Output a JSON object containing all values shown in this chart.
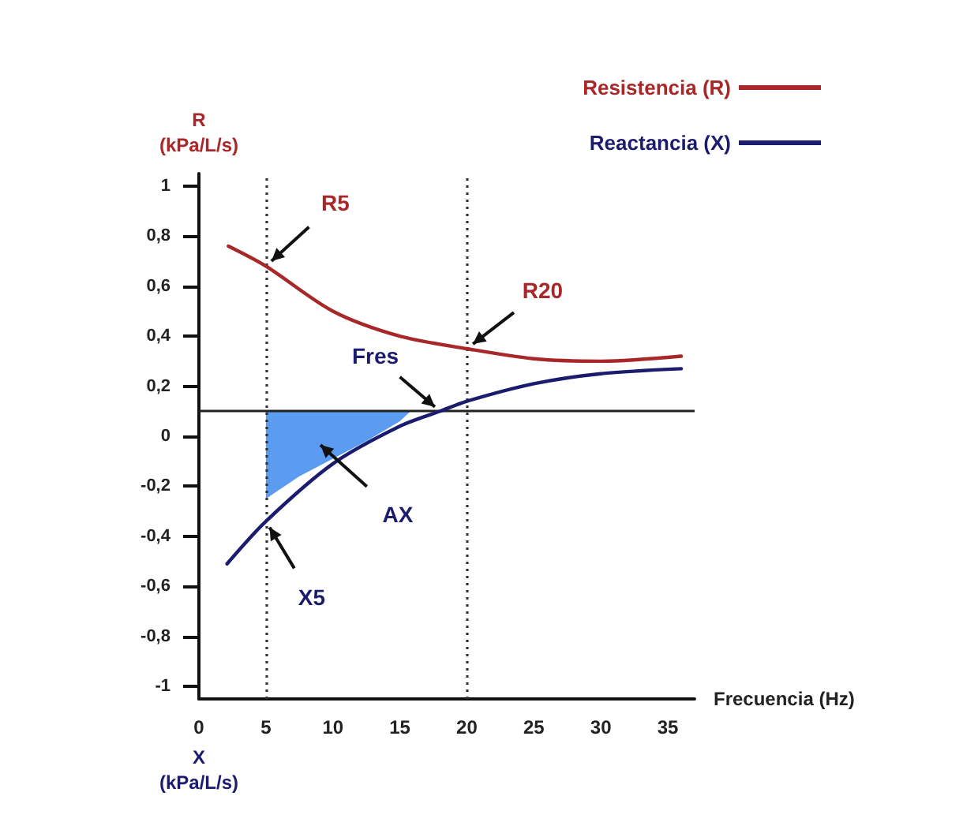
{
  "chart_data": {
    "type": "line",
    "xlabel": "Frecuencia (Hz)",
    "ylabel": "R (kPa/L/s)",
    "xlim": [
      0,
      37
    ],
    "xticks": [
      0,
      5,
      10,
      15,
      20,
      25,
      30,
      35
    ],
    "ylim": [
      -1.05,
      1.05
    ],
    "yticks": [
      {
        "value": -1,
        "label": "-1"
      },
      {
        "value": -0.8,
        "label": "-0,8"
      },
      {
        "value": -0.6,
        "label": "-0,6"
      },
      {
        "value": -0.4,
        "label": "-0,4"
      },
      {
        "value": -0.2,
        "label": "-0,2"
      },
      {
        "value": 0,
        "label": "0"
      },
      {
        "value": 0.2,
        "label": "0,2"
      },
      {
        "value": 0.4,
        "label": "0,4"
      },
      {
        "value": 0.6,
        "label": "0,6"
      },
      {
        "value": 0.8,
        "label": "0,8"
      },
      {
        "value": 1,
        "label": "1"
      }
    ],
    "grid": false,
    "legend": "top right",
    "marker": "none",
    "line_style": "solid",
    "series": [
      {
        "name": "Resistencia (R)",
        "color": "#a8282a",
        "x": [
          2.2,
          5,
          10,
          15,
          20,
          25,
          30,
          36
        ],
        "values": [
          0.76,
          0.68,
          0.5,
          0.4,
          0.35,
          0.31,
          0.3,
          0.32
        ]
      },
      {
        "name": "Reactancia (X)",
        "color": "#1c1c6e",
        "x": [
          2.1,
          5,
          10,
          15,
          18,
          20,
          25,
          30,
          36
        ],
        "values": [
          -0.51,
          -0.34,
          -0.11,
          0.04,
          0.1,
          0.14,
          0.21,
          0.25,
          0.27
        ]
      },
      {
        "type": "area",
        "color": "#5b9cf0",
        "x": [
          5,
          5,
          7.5,
          10,
          12.5,
          15,
          15.8
        ],
        "values": [
          0.1,
          -0.25,
          -0.16,
          -0.09,
          -0.02,
          0.06,
          0.1
        ]
      }
    ],
    "ref_lines": [
      {
        "axis": "y",
        "value": 0.1,
        "color": "#222222",
        "line_style": "solid"
      },
      {
        "axis": "x",
        "value": 5,
        "color": "#333333",
        "line_style": "dotted"
      },
      {
        "axis": "x",
        "value": 20,
        "color": "#333333",
        "line_style": "dotted"
      }
    ],
    "annotations": [
      {
        "text": "R5",
        "x": 5,
        "y": 0.68
      },
      {
        "text": "R20",
        "x": 20,
        "y": 0.35
      },
      {
        "text": "Fres",
        "x": 18,
        "y": 0.1
      },
      "AX",
      {
        "text": "X5",
        "x": 5,
        "y": -0.34
      },
      "X (kPa/L/s)"
    ]
  }
}
